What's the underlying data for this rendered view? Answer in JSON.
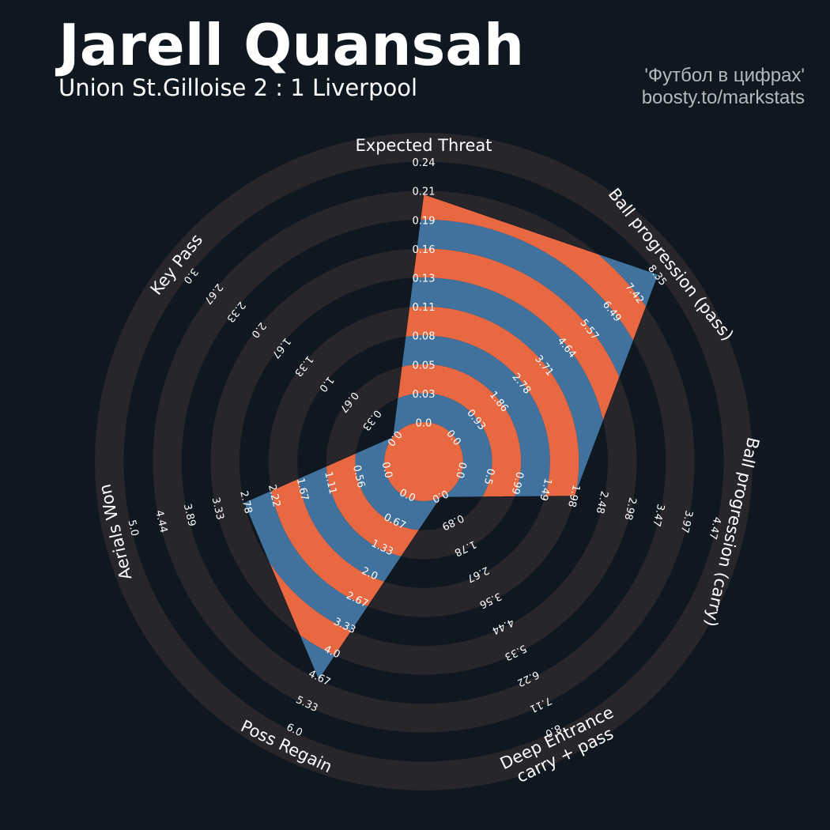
{
  "header": {
    "title": "Jarell Quansah",
    "subtitle": "Union St.Gilloise 2 : 1 Liverpool"
  },
  "credits": {
    "line1": "'Футбол в цифрах'",
    "line2": "boosty.to/markstats"
  },
  "colors": {
    "background": "#0f1720",
    "ring_band": "#28252b",
    "fill_orange": "#e86842",
    "fill_blue": "#41729d",
    "text": "#ffffff",
    "credit_text": "#b5b8bc"
  },
  "chart_data": {
    "type": "radar",
    "title": "Jarell Quansah",
    "rings": 10,
    "parameters": [
      {
        "label": "Expected Threat",
        "min": 0.0,
        "max": 0.24,
        "value": 0.21,
        "ticks": [
          "0.0",
          "0.03",
          "0.05",
          "0.08",
          "0.11",
          "0.13",
          "0.16",
          "0.19",
          "0.21",
          "0.24"
        ]
      },
      {
        "label": "Ball progression (pass)",
        "min": 0.0,
        "max": 8.35,
        "value": 8.35,
        "ticks": [
          "0.0",
          "0.93",
          "1.86",
          "2.78",
          "3.71",
          "4.64",
          "5.57",
          "6.49",
          "7.42",
          "8.35"
        ]
      },
      {
        "label": "Ball progression (carry)",
        "min": 0.0,
        "max": 4.47,
        "value": 1.98,
        "ticks": [
          "0.0",
          "0.5",
          "0.99",
          "1.49",
          "1.98",
          "2.48",
          "2.98",
          "3.47",
          "3.97",
          "4.47"
        ]
      },
      {
        "label": "Deep Entrance\ncarry + pass",
        "min": 0.0,
        "max": 8.0,
        "value": 0.0,
        "ticks": [
          "0.0",
          "0.89",
          "1.78",
          "2.67",
          "3.56",
          "4.44",
          "5.33",
          "6.22",
          "7.11",
          "8.0"
        ]
      },
      {
        "label": "Poss Regain",
        "min": 0.0,
        "max": 6.0,
        "value": 4.67,
        "ticks": [
          "0.0",
          "0.67",
          "1.33",
          "2.0",
          "2.67",
          "3.33",
          "4.0",
          "4.67",
          "5.33",
          "6.0"
        ]
      },
      {
        "label": "Aerials Won",
        "min": 0.0,
        "max": 5.0,
        "value": 2.78,
        "ticks": [
          "0.0",
          "0.56",
          "1.11",
          "1.67",
          "2.22",
          "2.78",
          "3.33",
          "3.89",
          "4.44",
          "5.0"
        ]
      },
      {
        "label": "Key Pass",
        "min": 0.0,
        "max": 3.0,
        "value": 0.0,
        "ticks": [
          "0.0",
          "0.33",
          "0.67",
          "1.0",
          "1.33",
          "1.67",
          "2.0",
          "2.33",
          "2.67",
          "3.0"
        ]
      }
    ],
    "grid": true,
    "legend": "none"
  }
}
